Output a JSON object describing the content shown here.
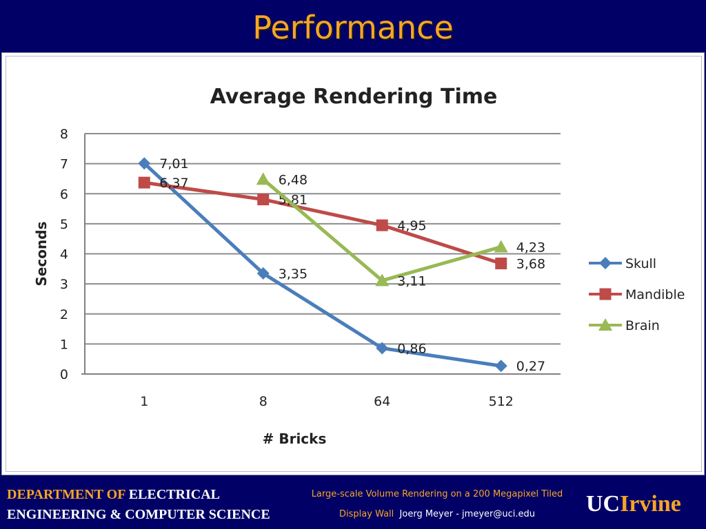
{
  "slide": {
    "title": "Performance"
  },
  "footer": {
    "dept_line1_accent": "DEPARTMENT OF",
    "dept_line1_rest": "ELECTRICAL",
    "dept_line2": "ENGINEERING & COMPUTER SCIENCE",
    "talk_title_line1": "Large-scale Volume Rendering on a 200 Megapixel Tiled",
    "talk_title_line2": "Display Wall",
    "author": "Joerg Meyer - jmeyer@uci.edu",
    "logo_uc": "UC",
    "logo_irvine": "Irvine"
  },
  "colors": {
    "background": "#000066",
    "title": "#f7a526",
    "skull": "#4a7ebb",
    "mandible": "#be4b48",
    "brain": "#98b954"
  },
  "chart_data": {
    "type": "line",
    "title": "Average Rendering Time",
    "xlabel": "# Bricks",
    "ylabel": "Seconds",
    "categories": [
      "1",
      "8",
      "64",
      "512"
    ],
    "ylim": [
      0,
      8
    ],
    "yticks": [
      "0",
      "1",
      "2",
      "3",
      "4",
      "5",
      "6",
      "7",
      "8"
    ],
    "grid": true,
    "legend": "right",
    "series": [
      {
        "name": "Skull",
        "color": "#4a7ebb",
        "marker": "diamond",
        "values": [
          7.01,
          3.35,
          0.86,
          0.27
        ],
        "labels": [
          "7,01",
          "3,35",
          "0,86",
          "0,27"
        ]
      },
      {
        "name": "Mandible",
        "color": "#be4b48",
        "marker": "square",
        "values": [
          6.37,
          5.81,
          4.95,
          3.68
        ],
        "labels": [
          "6,37",
          "5,81",
          "4,95",
          "3,68"
        ]
      },
      {
        "name": "Brain",
        "color": "#98b954",
        "marker": "triangle",
        "values": [
          null,
          6.48,
          3.11,
          4.23
        ],
        "labels": [
          null,
          "6,48",
          "3,11",
          "4,23"
        ]
      }
    ]
  }
}
